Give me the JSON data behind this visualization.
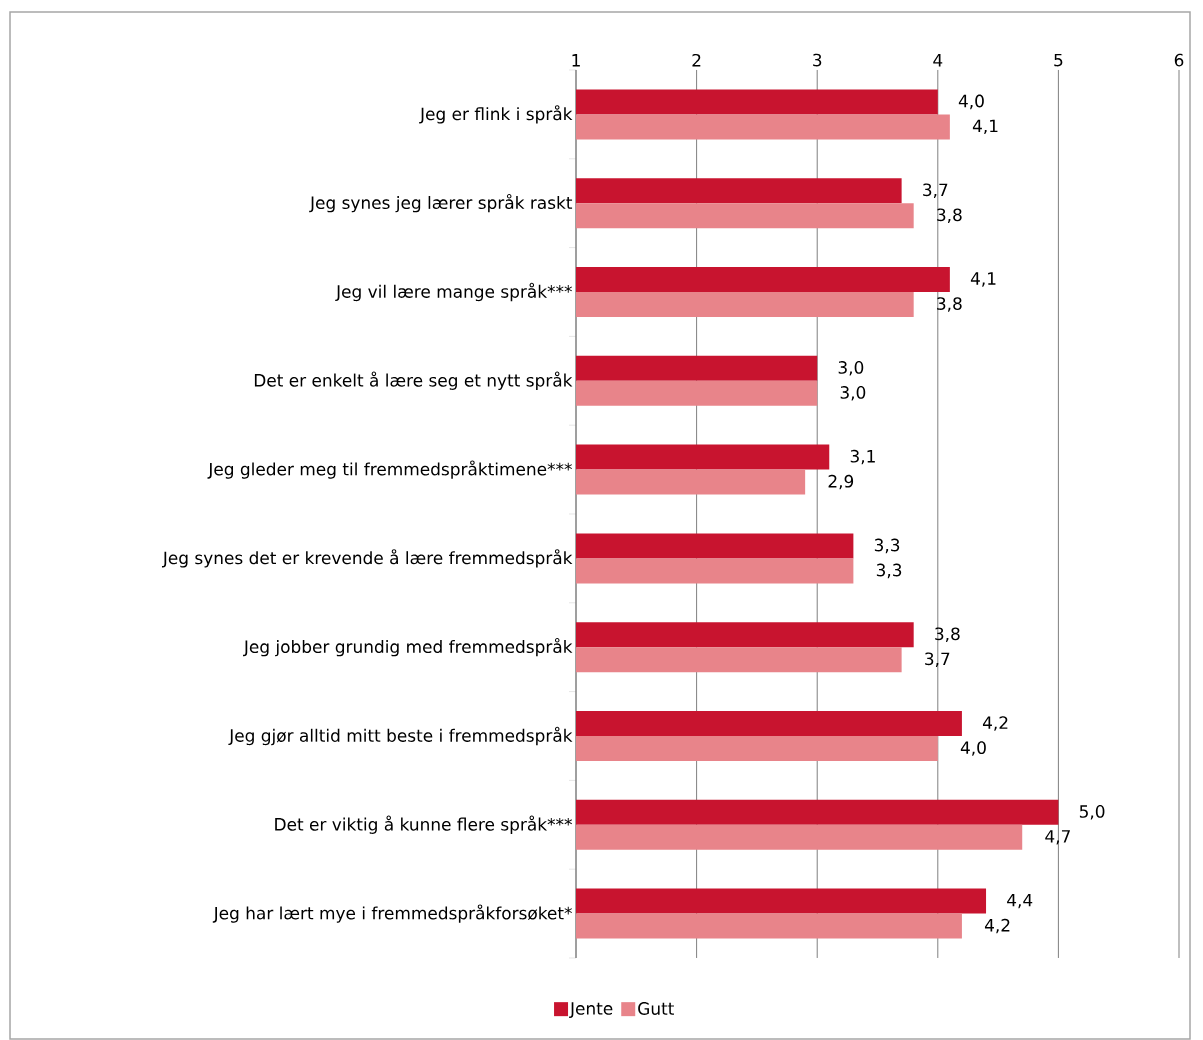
{
  "chart_data": {
    "type": "bar",
    "orientation": "horizontal",
    "categories": [
      "Jeg er flink i språk",
      "Jeg synes jeg lærer språk raskt",
      "Jeg vil lære mange språk***",
      "Det er enkelt å lære seg et nytt språk",
      "Jeg gleder meg til fremmedspråktimene***",
      "Jeg synes det er krevende å lære fremmedspråk",
      "Jeg jobber grundig med fremmedspråk",
      "Jeg gjør alltid mitt beste i fremmedspråk",
      "Det er viktig å kunne flere språk***",
      "Jeg har lært mye i fremmedspråkforsøket*"
    ],
    "series": [
      {
        "name": "Jente",
        "color": "#c8142f",
        "values": [
          4.0,
          3.7,
          4.1,
          3.0,
          3.1,
          3.3,
          3.8,
          4.2,
          5.0,
          4.4
        ],
        "value_labels": [
          "4,0",
          "3,7",
          "4,1",
          "3,0",
          "3,1",
          "3,3",
          "3,8",
          "4,2",
          "5,0",
          "4,4"
        ]
      },
      {
        "name": "Gutt",
        "color": "#e8848a",
        "values": [
          4.1,
          3.8,
          3.8,
          3.0,
          2.9,
          3.3,
          3.7,
          4.0,
          4.7,
          4.2
        ],
        "value_labels": [
          "4,1",
          "3,8",
          "3,8",
          "3,0",
          "2,9",
          "3,3",
          "3,7",
          "4,0",
          "4,7",
          "4,2"
        ]
      }
    ],
    "xlim": [
      1,
      6
    ],
    "xticks": [
      1,
      2,
      3,
      4,
      5,
      6
    ],
    "grid": "x",
    "legend": "bottom"
  }
}
